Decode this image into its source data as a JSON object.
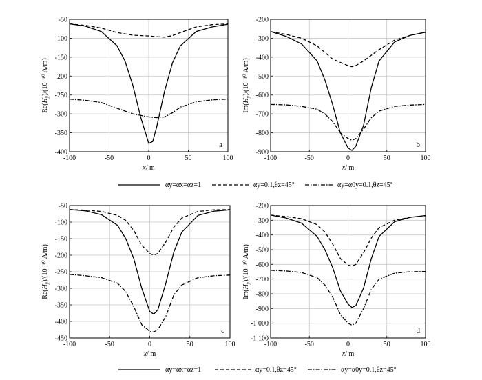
{
  "figure": {
    "legend_row_1": [
      "αy=αx=αz=1",
      "αy=0.1,θz=45°",
      "αy=α0y=0.1,θz=45°"
    ],
    "legend_row_2": [
      "αy=αx=αz=1",
      "αy=0.1,θz=45°",
      "αy=α0y=0.1,θz=45°"
    ]
  },
  "chart_data": [
    {
      "type": "line",
      "panel_label": "a",
      "xlabel": "x/ m",
      "ylabel": "Re(Hy)/(10⁻¹⁰ A/m)",
      "xlim": [
        -100,
        100
      ],
      "ylim": [
        -400,
        -50
      ],
      "xticks": [
        -100,
        -50,
        0,
        50,
        100
      ],
      "yticks": [
        -50,
        -100,
        -150,
        -200,
        -250,
        -300,
        -350,
        -400
      ],
      "ytick_labels": [
        "-50",
        "-100",
        "-150",
        "-200",
        "-250",
        "-300",
        "-350",
        "-400"
      ],
      "grid": true,
      "series": [
        {
          "name": "αy=αx=αz=1",
          "style": "solid",
          "x": [
            -100,
            -80,
            -60,
            -40,
            -30,
            -20,
            -10,
            0,
            5,
            10,
            20,
            30,
            40,
            60,
            80,
            100
          ],
          "values": [
            -62,
            -68,
            -82,
            -120,
            -160,
            -225,
            -310,
            -378,
            -373,
            -335,
            -240,
            -165,
            -120,
            -82,
            -70,
            -63
          ]
        },
        {
          "name": "αy=0.1,θz=45°",
          "style": "dash",
          "x": [
            -100,
            -80,
            -60,
            -40,
            -20,
            0,
            10,
            20,
            30,
            40,
            60,
            80,
            100
          ],
          "values": [
            -62,
            -66,
            -73,
            -85,
            -92,
            -94,
            -96,
            -97,
            -93,
            -85,
            -70,
            -64,
            -62
          ]
        },
        {
          "name": "αy=α0y=0.1,θz=45°",
          "style": "dashdot",
          "x": [
            -100,
            -80,
            -60,
            -40,
            -20,
            0,
            10,
            20,
            30,
            40,
            60,
            80,
            100
          ],
          "values": [
            -261,
            -264,
            -270,
            -285,
            -300,
            -308,
            -310,
            -308,
            -297,
            -282,
            -268,
            -263,
            -261
          ]
        }
      ]
    },
    {
      "type": "line",
      "panel_label": "b",
      "xlabel": "x/ m",
      "ylabel": "Im(Hy)/(10⁻¹⁰ A/m)",
      "xlim": [
        -100,
        100
      ],
      "ylim": [
        -900,
        -200
      ],
      "xticks": [
        -100,
        -50,
        0,
        50,
        100
      ],
      "yticks": [
        -200,
        -300,
        -400,
        -500,
        -600,
        -700,
        -800,
        -900
      ],
      "ytick_labels": [
        "-200",
        "-300",
        "-400",
        "-500",
        "-600",
        "-700",
        "-800",
        "-900"
      ],
      "grid": true,
      "series": [
        {
          "name": "αy=αx=αz=1",
          "style": "solid",
          "x": [
            -100,
            -80,
            -60,
            -40,
            -30,
            -20,
            -10,
            0,
            5,
            10,
            20,
            30,
            40,
            60,
            80,
            100
          ],
          "values": [
            -265,
            -290,
            -330,
            -420,
            -520,
            -650,
            -800,
            -880,
            -893,
            -870,
            -760,
            -560,
            -420,
            -320,
            -285,
            -268
          ]
        },
        {
          "name": "αy=0.1,θz=45°",
          "style": "dash",
          "x": [
            -100,
            -80,
            -60,
            -40,
            -20,
            0,
            5,
            10,
            20,
            40,
            60,
            80,
            100
          ],
          "values": [
            -265,
            -280,
            -300,
            -340,
            -410,
            -445,
            -450,
            -445,
            -420,
            -360,
            -310,
            -285,
            -268
          ]
        },
        {
          "name": "αy=α0y=0.1,θz=45°",
          "style": "dashdot",
          "x": [
            -100,
            -80,
            -60,
            -40,
            -30,
            -20,
            -10,
            0,
            5,
            10,
            20,
            30,
            40,
            60,
            80,
            100
          ],
          "values": [
            -650,
            -652,
            -660,
            -675,
            -700,
            -740,
            -800,
            -830,
            -840,
            -830,
            -780,
            -720,
            -685,
            -660,
            -653,
            -650
          ]
        }
      ]
    },
    {
      "type": "line",
      "panel_label": "c",
      "xlabel": "x/ m",
      "ylabel": "Re(Hy)/(10⁻¹⁰ A/m)",
      "xlim": [
        -100,
        100
      ],
      "ylim": [
        -450,
        -50
      ],
      "xticks": [
        -100,
        -50,
        0,
        50,
        100
      ],
      "yticks": [
        -50,
        -100,
        -150,
        -200,
        -250,
        -300,
        -350,
        -400,
        -450
      ],
      "ytick_labels": [
        "-50",
        "-100",
        "-150",
        "-200",
        "-250",
        "-300",
        "-350",
        "-400",
        "-450"
      ],
      "grid": true,
      "series": [
        {
          "name": "αy=αx=αz=1",
          "style": "solid",
          "x": [
            -100,
            -80,
            -60,
            -40,
            -30,
            -20,
            -10,
            0,
            5,
            10,
            20,
            30,
            40,
            60,
            80,
            100
          ],
          "values": [
            -62,
            -66,
            -78,
            -110,
            -150,
            -210,
            -300,
            -370,
            -378,
            -365,
            -285,
            -190,
            -130,
            -80,
            -67,
            -63
          ]
        },
        {
          "name": "αy=0.1,θz=45°",
          "style": "dash",
          "x": [
            -100,
            -80,
            -60,
            -40,
            -30,
            -20,
            -10,
            0,
            5,
            10,
            20,
            30,
            40,
            60,
            80,
            100
          ],
          "values": [
            -62,
            -64,
            -68,
            -80,
            -95,
            -125,
            -170,
            -195,
            -200,
            -195,
            -160,
            -115,
            -88,
            -68,
            -63,
            -62
          ]
        },
        {
          "name": "αy=α0y=0.1,θz=45°",
          "style": "dashdot",
          "x": [
            -100,
            -80,
            -60,
            -40,
            -30,
            -20,
            -10,
            0,
            5,
            10,
            20,
            30,
            40,
            60,
            80,
            100
          ],
          "values": [
            -258,
            -262,
            -268,
            -285,
            -310,
            -355,
            -410,
            -430,
            -432,
            -425,
            -385,
            -320,
            -290,
            -268,
            -262,
            -260
          ]
        }
      ]
    },
    {
      "type": "line",
      "panel_label": "d",
      "xlabel": "x/ m",
      "ylabel": "Im(Hy)/(10⁻¹⁰ A/m)",
      "xlim": [
        -100,
        100
      ],
      "ylim": [
        -1100,
        -200
      ],
      "xticks": [
        -100,
        -50,
        0,
        50,
        100
      ],
      "yticks": [
        -200,
        -300,
        -400,
        -500,
        -600,
        -700,
        -800,
        -900,
        -1000,
        -1100
      ],
      "ytick_labels": [
        "-200",
        "-300",
        "-400",
        "-500",
        "-600",
        "-700",
        "-800",
        "-900",
        "-1 000",
        "-1 100"
      ],
      "grid": true,
      "series": [
        {
          "name": "αy=αx=αz=1",
          "style": "solid",
          "x": [
            -100,
            -80,
            -60,
            -40,
            -30,
            -20,
            -10,
            0,
            5,
            10,
            20,
            30,
            40,
            60,
            80,
            100
          ],
          "values": [
            -265,
            -285,
            -320,
            -410,
            -500,
            -620,
            -780,
            -870,
            -893,
            -880,
            -760,
            -560,
            -410,
            -310,
            -280,
            -268
          ]
        },
        {
          "name": "αy=0.1,θz=45°",
          "style": "dash",
          "x": [
            -100,
            -80,
            -60,
            -40,
            -30,
            -20,
            -10,
            0,
            5,
            10,
            20,
            30,
            40,
            60,
            80,
            100
          ],
          "values": [
            -265,
            -275,
            -290,
            -330,
            -380,
            -460,
            -560,
            -605,
            -612,
            -600,
            -520,
            -420,
            -350,
            -300,
            -280,
            -270
          ]
        },
        {
          "name": "αy=α0y=0.1,θz=45°",
          "style": "dashdot",
          "x": [
            -100,
            -80,
            -60,
            -40,
            -30,
            -20,
            -10,
            0,
            5,
            10,
            20,
            30,
            40,
            60,
            80,
            100
          ],
          "values": [
            -640,
            -645,
            -655,
            -690,
            -740,
            -820,
            -940,
            -1000,
            -1013,
            -1000,
            -900,
            -770,
            -700,
            -660,
            -650,
            -648
          ]
        }
      ]
    }
  ]
}
